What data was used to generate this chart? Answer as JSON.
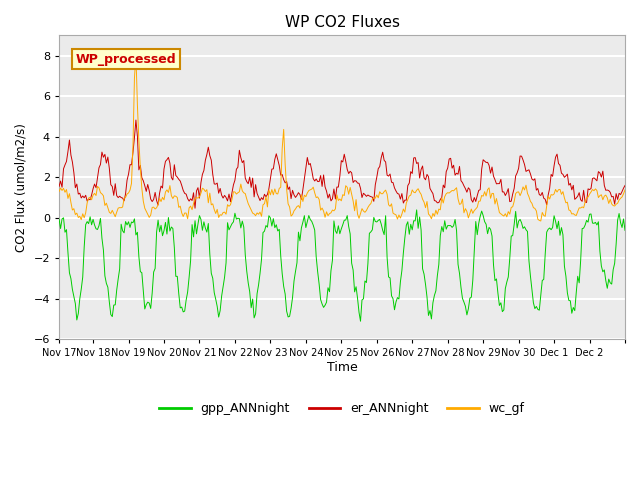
{
  "title": "WP CO2 Fluxes",
  "ylabel": "CO2 Flux (umol/m2/s)",
  "xlabel": "Time",
  "ylim": [
    -6,
    9
  ],
  "yticks": [
    -6,
    -4,
    -2,
    0,
    2,
    4,
    6,
    8
  ],
  "annotation_text": "WP_processed",
  "annotation_color": "#cc0000",
  "annotation_bg": "#ffffcc",
  "annotation_border": "#cc8800",
  "line_gpp_color": "#00cc00",
  "line_er_color": "#cc0000",
  "line_wc_color": "#ffaa00",
  "legend_labels": [
    "gpp_ANNnight",
    "er_ANNnight",
    "wc_gf"
  ],
  "n_days": 16,
  "pts_per_day": 24,
  "plot_bg": "#ebebeb",
  "grid_color": "#ffffff"
}
